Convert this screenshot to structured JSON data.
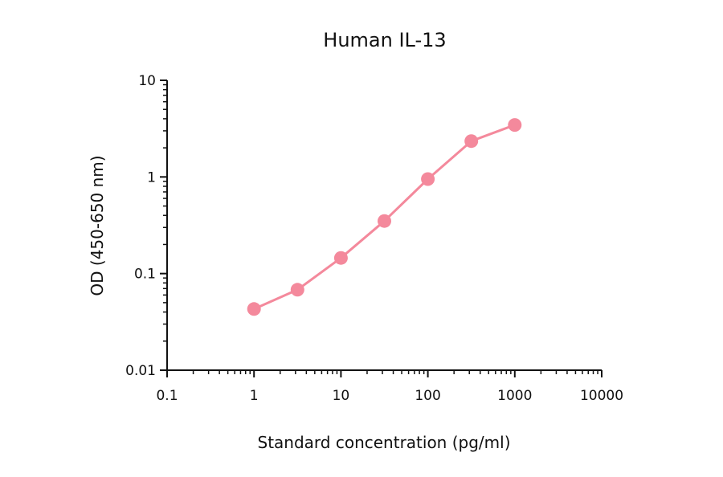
{
  "chart_data": {
    "type": "line",
    "title": "Human IL-13",
    "xlabel": "Standard concentration (pg/ml)",
    "ylabel": "OD (450-650 nm)",
    "x_scale": "log",
    "y_scale": "log",
    "xlim": [
      0.1,
      10000
    ],
    "ylim": [
      0.01,
      10
    ],
    "x_ticks": [
      "0.1",
      "1",
      "10",
      "100",
      "1000",
      "10000"
    ],
    "y_ticks": [
      "0.01",
      "0.1",
      "1",
      "10"
    ],
    "grid": false,
    "series": [
      {
        "color": "#f4899c",
        "x": [
          1,
          3.16,
          10,
          31.6,
          100,
          316,
          1000
        ],
        "y": [
          0.043,
          0.068,
          0.145,
          0.35,
          0.95,
          2.35,
          3.45
        ]
      }
    ]
  }
}
